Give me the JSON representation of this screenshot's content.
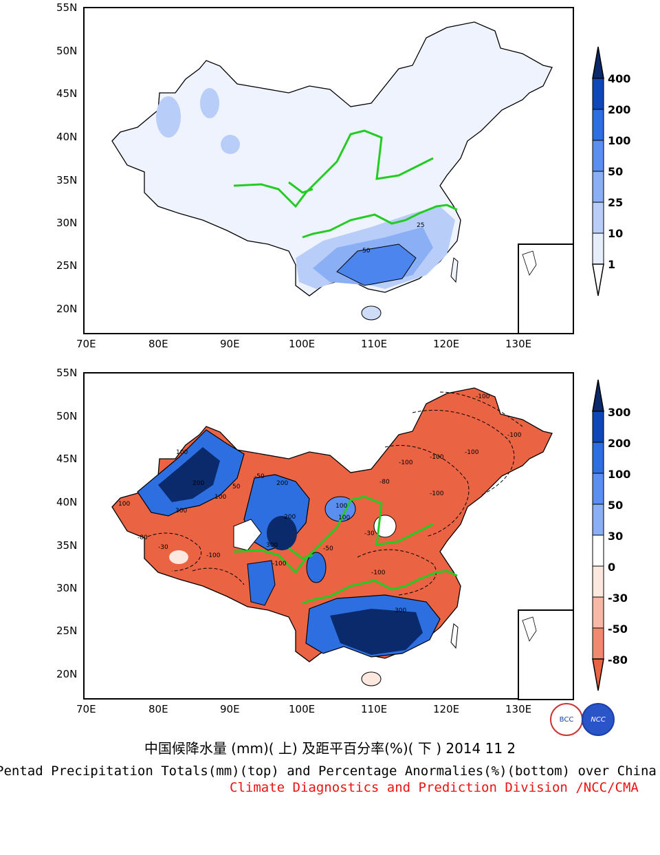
{
  "axes": {
    "lat_labels": [
      "55N",
      "50N",
      "45N",
      "40N",
      "35N",
      "30N",
      "25N",
      "20N"
    ],
    "lon_labels": [
      "70E",
      "80E",
      "90E",
      "100E",
      "110E",
      "120E",
      "130E"
    ]
  },
  "top_panel": {
    "colorbar_labels": [
      "400",
      "200",
      "100",
      "50",
      "25",
      "10",
      "1"
    ],
    "colors": [
      "#0a2a6b",
      "#0d47b8",
      "#2d6fe0",
      "#5a8ff0",
      "#8aaff5",
      "#b8cdf8",
      "#e6eefc",
      "#ffffff"
    ],
    "contour_labels": [
      "50",
      "25"
    ]
  },
  "bottom_panel": {
    "colorbar_labels": [
      "300",
      "200",
      "100",
      "50",
      "30",
      "0",
      "-30",
      "-50",
      "-80"
    ],
    "colors": [
      "#0a2a6b",
      "#0d47b8",
      "#2d6fe0",
      "#5a8ff0",
      "#8aaff5",
      "#b8cdf8",
      "#ffffff",
      "#fde8e0",
      "#f7b9a6",
      "#f08a6e",
      "#ea6342"
    ],
    "contour_labels": [
      "-100",
      "-100",
      "-100",
      "-100",
      "-100",
      "-100",
      "-80",
      "-100",
      "-50",
      "-30",
      "100",
      "200",
      "300",
      "300",
      "200",
      "100",
      "50",
      "-50",
      "-100",
      "-80",
      "-30",
      "200",
      "100",
      "-100",
      "100",
      "300",
      "100"
    ]
  },
  "caption": {
    "cn": "中国候降水量 (mm)( 上) 及距平百分率(%)( 下 ) 2014 11 2",
    "en": "Pentad Precipitation Totals(mm)(top) and Percentage Anormalies(%)(bottom) over China",
    "credit": "Climate Diagnostics and Prediction Division /NCC/CMA"
  },
  "logos": {
    "left": "BCC",
    "right": "NCC"
  },
  "boundary_color": "#22cc22"
}
